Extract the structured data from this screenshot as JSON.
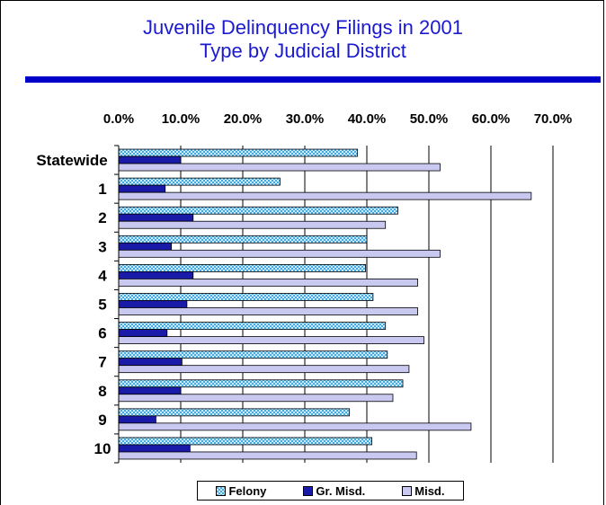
{
  "chart_data": {
    "type": "bar",
    "orientation": "horizontal",
    "title_line1": "Juvenile Delinquency Filings in 2001",
    "title_line2": "Type by Judicial District",
    "x_tick_labels": [
      "0.0%",
      "10.0%",
      "20.0%",
      "30.0%",
      "40.0%",
      "50.0%",
      "60.0%",
      "70.0%"
    ],
    "xlim": [
      0,
      70
    ],
    "categories": [
      "Statewide",
      "1",
      "2",
      "3",
      "4",
      "5",
      "6",
      "7",
      "8",
      "9",
      "10"
    ],
    "series": [
      {
        "name": "Felony",
        "color": "#4aa8e0",
        "pattern": "checkered",
        "values": [
          38.5,
          26.0,
          45.0,
          40.0,
          39.8,
          41.0,
          43.0,
          43.3,
          45.8,
          37.2,
          40.8
        ]
      },
      {
        "name": "Gr. Misd.",
        "color": "#1a1aa8",
        "pattern": "solid",
        "values": [
          10.0,
          7.5,
          12.0,
          8.5,
          12.0,
          11.0,
          7.8,
          10.2,
          10.0,
          6.0,
          11.5
        ]
      },
      {
        "name": "Misd.",
        "color": "#c8c8f0",
        "pattern": "solid",
        "values": [
          51.8,
          66.5,
          43.0,
          51.8,
          48.2,
          48.2,
          49.2,
          46.8,
          44.2,
          56.8,
          48.0
        ]
      }
    ],
    "grid": true,
    "legend_position": "bottom"
  }
}
